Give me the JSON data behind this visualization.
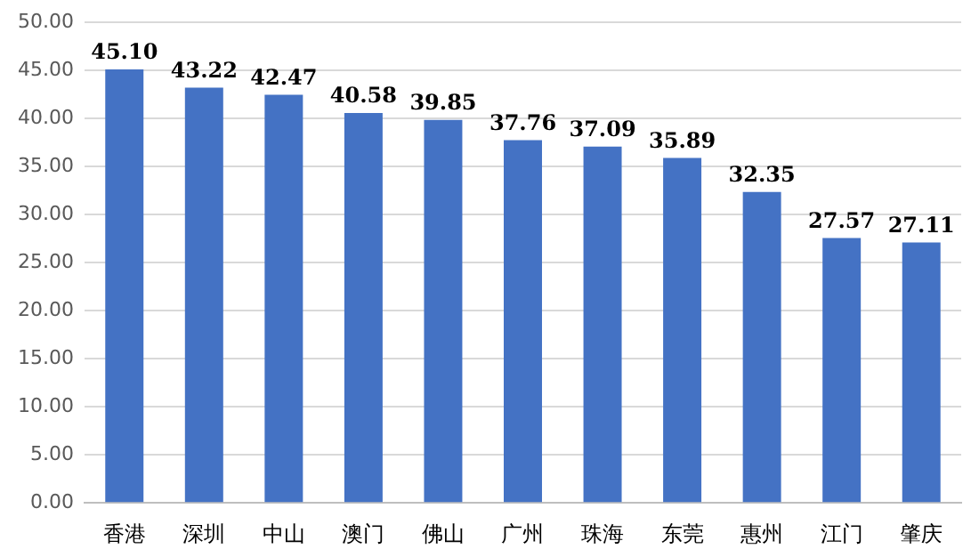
{
  "chart_data": {
    "type": "bar",
    "categories": [
      "香港",
      "深圳",
      "中山",
      "澳门",
      "佛山",
      "广州",
      "珠海",
      "东莞",
      "惠州",
      "江门",
      "肇庆"
    ],
    "values": [
      45.1,
      43.22,
      42.47,
      40.58,
      39.85,
      37.76,
      37.09,
      35.89,
      32.35,
      27.57,
      27.11
    ],
    "value_labels": [
      "45.10",
      "43.22",
      "42.47",
      "40.58",
      "39.85",
      "37.76",
      "37.09",
      "35.89",
      "32.35",
      "27.57",
      "27.11"
    ],
    "color": "#4472c4",
    "grid": "y",
    "legend": false,
    "ylim": [
      0,
      50
    ],
    "yticks": [
      {
        "value": 0,
        "label": "0.00"
      },
      {
        "value": 5,
        "label": "5.00"
      },
      {
        "value": 10,
        "label": "10.00"
      },
      {
        "value": 15,
        "label": "15.00"
      },
      {
        "value": 20,
        "label": "20.00"
      },
      {
        "value": 25,
        "label": "25.00"
      },
      {
        "value": 30,
        "label": "30.00"
      },
      {
        "value": 35,
        "label": "35.00"
      },
      {
        "value": 40,
        "label": "40.00"
      },
      {
        "value": 45,
        "label": "45.00"
      },
      {
        "value": 50,
        "label": "50.00"
      }
    ]
  }
}
